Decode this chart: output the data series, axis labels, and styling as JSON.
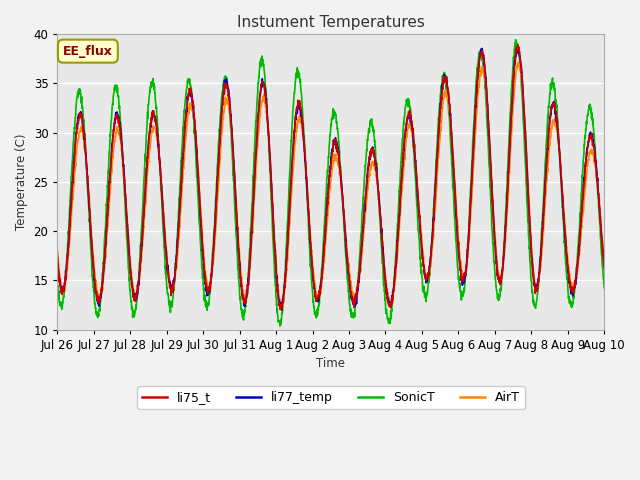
{
  "title": "Instument Temperatures",
  "ylabel": "Temperature (C)",
  "xlabel": "Time",
  "annotation": "EE_flux",
  "ylim": [
    10,
    40
  ],
  "xtick_labels": [
    "Jul 26",
    "Jul 27",
    "Jul 28",
    "Jul 29",
    "Jul 30",
    "Jul 31",
    "Aug 1",
    "Aug 2",
    "Aug 3",
    "Aug 4",
    "Aug 5",
    "Aug 6",
    "Aug 7",
    "Aug 8",
    "Aug 9",
    "Aug 10"
  ],
  "series_colors": {
    "li75_t": "#cc0000",
    "li77_temp": "#0000cc",
    "SonicT": "#00bb00",
    "AirT": "#ff8800"
  },
  "plot_bg_color": "#e8e8e8",
  "fig_bg_color": "#f2f2f2",
  "n_days": 15,
  "points_per_day": 144
}
